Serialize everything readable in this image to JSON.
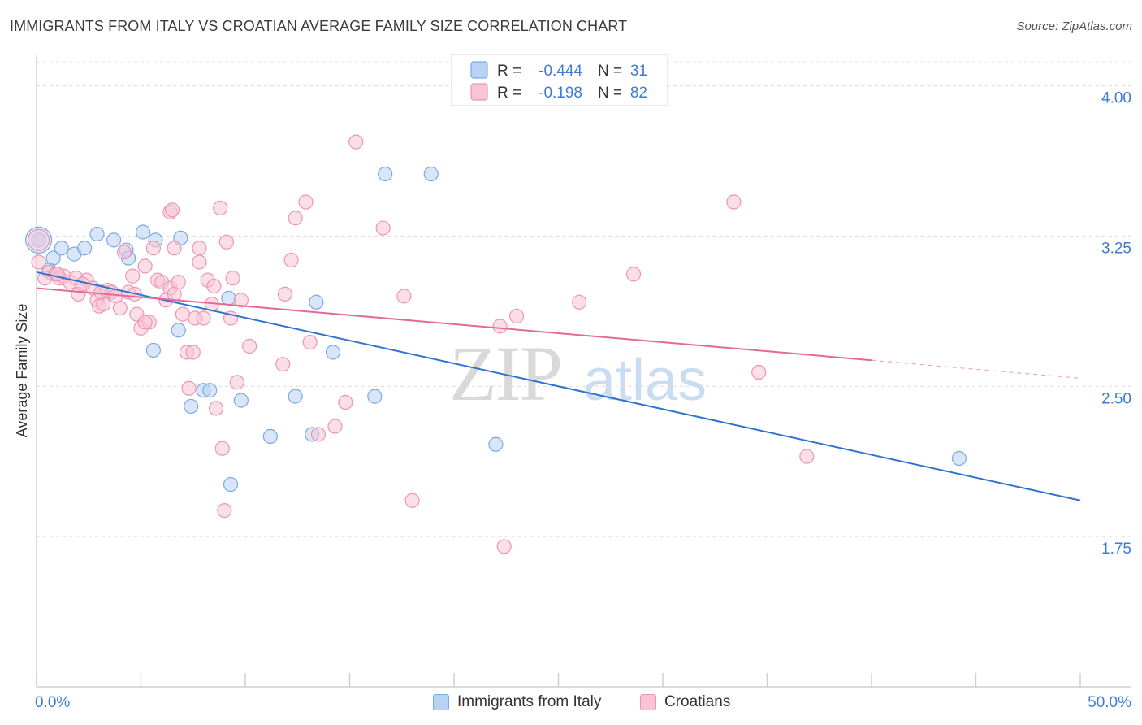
{
  "title": "IMMIGRANTS FROM ITALY VS CROATIAN AVERAGE FAMILY SIZE CORRELATION CHART",
  "source": "Source: ZipAtlas.com",
  "watermark": {
    "zip": "ZIP",
    "atlas": "atlas"
  },
  "colors": {
    "blue_fill": "#b8d2f3",
    "blue_stroke": "#7aaae6",
    "blue_line": "#2f72d0",
    "pink_fill": "#f8c4d5",
    "pink_stroke": "#ee95b3",
    "pink_line": "#e36a96",
    "axis_text": "#3f7cd1"
  },
  "stats_box": {
    "rows": [
      {
        "r_label": "R =",
        "r_value": "-0.444",
        "n_label": "N =",
        "n_value": "31"
      },
      {
        "r_label": "R =",
        "r_value": "-0.198",
        "n_label": "N =",
        "n_value": "82"
      }
    ]
  },
  "legend": {
    "items": [
      {
        "label": "Immigrants from Italy"
      },
      {
        "label": "Croatians"
      }
    ]
  },
  "chart_data": {
    "type": "scatter",
    "title": "IMMIGRANTS FROM ITALY VS CROATIAN AVERAGE FAMILY SIZE CORRELATION CHART",
    "xlabel": "",
    "ylabel": "Average Family Size",
    "xlim": [
      0,
      50
    ],
    "ylim": [
      1.0,
      4.12
    ],
    "x_tick_labels": [
      "0.0%",
      "50.0%"
    ],
    "y_ticks": [
      1.75,
      2.5,
      3.25,
      4.0
    ],
    "y_tick_labels": [
      "1.75",
      "2.50",
      "3.25",
      "4.00"
    ],
    "grid": true,
    "legend_position": "bottom-center",
    "series": [
      {
        "name": "Immigrants from Italy",
        "r": -0.444,
        "n": 31,
        "trend": {
          "x0": 0,
          "y0": 3.07,
          "x1": 50,
          "y1": 1.93
        },
        "points": [
          [
            0.1,
            3.23
          ],
          [
            0.8,
            3.14
          ],
          [
            1.2,
            3.19
          ],
          [
            1.8,
            3.16
          ],
          [
            2.3,
            3.19
          ],
          [
            2.9,
            3.26
          ],
          [
            3.7,
            3.23
          ],
          [
            4.3,
            3.18
          ],
          [
            4.4,
            3.14
          ],
          [
            5.1,
            3.27
          ],
          [
            5.7,
            3.23
          ],
          [
            6.9,
            3.24
          ],
          [
            9.2,
            2.94
          ],
          [
            13.4,
            2.92
          ],
          [
            16.7,
            3.56
          ],
          [
            18.9,
            3.56
          ],
          [
            5.6,
            2.68
          ],
          [
            6.8,
            2.78
          ],
          [
            7.4,
            2.4
          ],
          [
            8.0,
            2.48
          ],
          [
            8.3,
            2.48
          ],
          [
            9.8,
            2.43
          ],
          [
            11.2,
            2.25
          ],
          [
            12.4,
            2.45
          ],
          [
            13.2,
            2.26
          ],
          [
            14.2,
            2.67
          ],
          [
            16.2,
            2.45
          ],
          [
            22.0,
            2.21
          ],
          [
            9.3,
            2.01
          ],
          [
            44.2,
            2.14
          ],
          [
            0.6,
            3.08
          ]
        ]
      },
      {
        "name": "Croatians",
        "r": -0.198,
        "n": 82,
        "trend": {
          "x0": 0,
          "y0": 2.99,
          "x1": 40,
          "y1": 2.63,
          "dashed_to_x": 50,
          "dashed_to_y": 2.54
        },
        "points": [
          [
            0.1,
            3.12
          ],
          [
            0.6,
            3.07
          ],
          [
            0.9,
            3.06
          ],
          [
            1.1,
            3.04
          ],
          [
            1.3,
            3.05
          ],
          [
            1.6,
            3.02
          ],
          [
            1.9,
            3.04
          ],
          [
            2.0,
            2.96
          ],
          [
            2.4,
            3.03
          ],
          [
            2.7,
            2.99
          ],
          [
            2.9,
            2.93
          ],
          [
            3.0,
            2.9
          ],
          [
            3.2,
            2.91
          ],
          [
            3.4,
            2.98
          ],
          [
            3.6,
            2.97
          ],
          [
            3.8,
            2.95
          ],
          [
            4.0,
            2.89
          ],
          [
            4.2,
            3.17
          ],
          [
            4.4,
            2.97
          ],
          [
            4.6,
            3.05
          ],
          [
            4.8,
            2.86
          ],
          [
            5.0,
            2.79
          ],
          [
            5.2,
            3.1
          ],
          [
            5.4,
            2.82
          ],
          [
            5.6,
            3.19
          ],
          [
            5.8,
            3.03
          ],
          [
            6.0,
            3.02
          ],
          [
            6.2,
            2.93
          ],
          [
            6.4,
            2.99
          ],
          [
            6.6,
            2.96
          ],
          [
            6.4,
            3.37
          ],
          [
            6.5,
            3.38
          ],
          [
            6.6,
            3.19
          ],
          [
            7.0,
            2.86
          ],
          [
            7.2,
            2.67
          ],
          [
            7.3,
            2.49
          ],
          [
            7.6,
            2.84
          ],
          [
            7.8,
            3.19
          ],
          [
            7.8,
            3.12
          ],
          [
            8.0,
            2.84
          ],
          [
            8.2,
            3.03
          ],
          [
            8.4,
            2.91
          ],
          [
            8.6,
            2.39
          ],
          [
            8.8,
            3.39
          ],
          [
            8.9,
            2.19
          ],
          [
            9.1,
            3.22
          ],
          [
            9.3,
            2.84
          ],
          [
            9.4,
            3.04
          ],
          [
            9.6,
            2.52
          ],
          [
            9.8,
            2.93
          ],
          [
            10.2,
            2.7
          ],
          [
            11.8,
            2.61
          ],
          [
            11.9,
            2.96
          ],
          [
            12.2,
            3.13
          ],
          [
            12.4,
            3.34
          ],
          [
            12.9,
            3.42
          ],
          [
            13.1,
            2.72
          ],
          [
            13.5,
            2.26
          ],
          [
            14.3,
            2.3
          ],
          [
            14.8,
            2.42
          ],
          [
            15.3,
            3.72
          ],
          [
            16.6,
            3.29
          ],
          [
            17.6,
            2.95
          ],
          [
            18.0,
            1.93
          ],
          [
            22.2,
            2.8
          ],
          [
            22.4,
            1.7
          ],
          [
            23.0,
            2.85
          ],
          [
            26.0,
            2.92
          ],
          [
            28.6,
            3.06
          ],
          [
            33.4,
            3.42
          ],
          [
            34.6,
            2.57
          ],
          [
            36.9,
            2.15
          ],
          [
            0.4,
            3.04
          ],
          [
            1.0,
            3.06
          ],
          [
            2.2,
            3.01
          ],
          [
            3.1,
            2.97
          ],
          [
            4.7,
            2.96
          ],
          [
            5.2,
            2.82
          ],
          [
            6.8,
            3.02
          ],
          [
            7.5,
            2.67
          ],
          [
            8.5,
            3.0
          ],
          [
            9.0,
            1.88
          ]
        ]
      }
    ]
  }
}
